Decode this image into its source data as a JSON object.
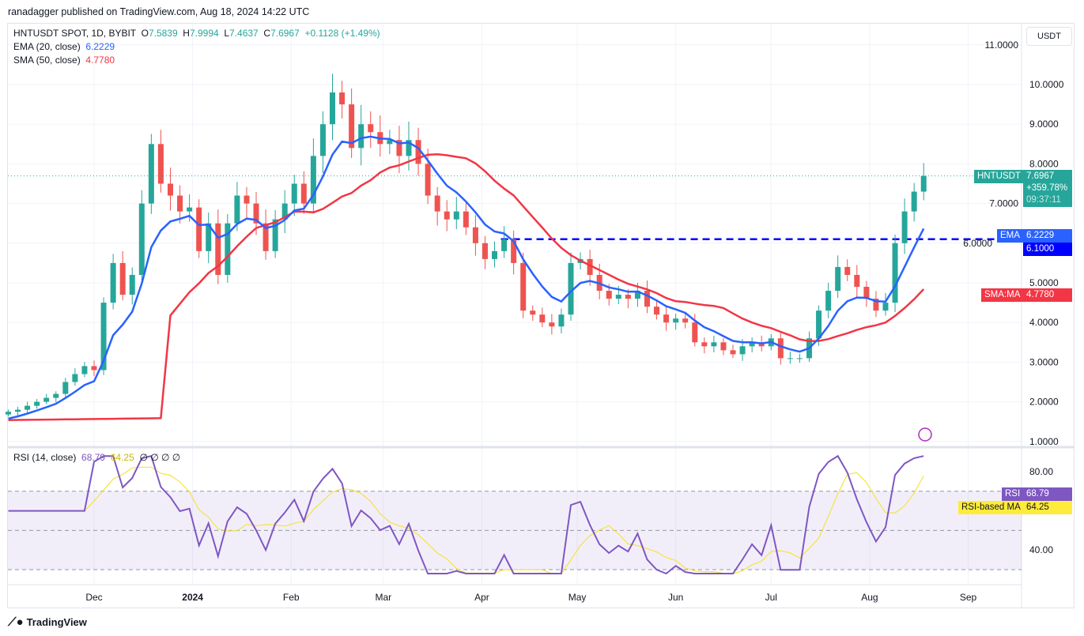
{
  "header": {
    "published": "ranadagger published on TradingView.com, Aug 18, 2024 14:22 UTC"
  },
  "legend": {
    "symbol": "HNTUSDT SPOT, 1D, BYBIT",
    "o": "7.5839",
    "h": "7.9994",
    "l": "7.4637",
    "c": "7.6967",
    "change": "+0.1128 (+1.49%)",
    "ema_label": "EMA (20, close)",
    "ema_value": "6.2229",
    "sma_label": "SMA (50, close)",
    "sma_value": "4.7780",
    "rsi_label": "RSI (14, close)",
    "rsi_value": "68.79",
    "rsi_ma_value": "64.25",
    "rsi_extra": "∅ ∅ ∅ ∅"
  },
  "currency": "USDT",
  "tags": {
    "symbol": "HNTUSDT",
    "price": "7.6967",
    "pct": "+359.78%",
    "countdown": "09:37:11",
    "ema": "EMA",
    "ema_val": "6.2229",
    "level": "6.1000",
    "sma": "SMA:MA",
    "sma_val": "4.7780",
    "rsi": "RSI",
    "rsi_val": "68.79",
    "rsi_ma": "RSI-based MA",
    "rsi_ma_val": "64.25"
  },
  "footer": {
    "brand": "TradingView"
  },
  "colors": {
    "up": "#26a69a",
    "down": "#ef5350",
    "ema": "#2962ff",
    "sma": "#f23645",
    "level": "#0000ff",
    "rsi": "#7e57c2",
    "rsi_ma": "#f5e342"
  },
  "chart_data": {
    "type": "candlestick",
    "price_ticks": [
      "11.0000",
      "10.0000",
      "9.0000",
      "8.0000",
      "7.0000",
      "6.0000",
      "5.0000",
      "4.0000",
      "3.0000",
      "2.0000",
      "1.0000"
    ],
    "price_tick_values": [
      11,
      10,
      9,
      8,
      7,
      6,
      5,
      4,
      3,
      2,
      1
    ],
    "ylim": [
      0.95,
      11.05
    ],
    "horizontal_level": 6.1,
    "x_ticks": [
      "Dec",
      "2024",
      "Feb",
      "Mar",
      "Apr",
      "May",
      "Jun",
      "Jul",
      "Aug",
      "Sep"
    ],
    "x_tick_dates": [
      "2023-12-01",
      "2024-01-01",
      "2024-02-01",
      "2024-03-01",
      "2024-04-01",
      "2024-05-01",
      "2024-06-01",
      "2024-07-01",
      "2024-08-01",
      "2024-09-01"
    ],
    "rsi_ticks": [
      "80.00",
      "40.00"
    ],
    "rsi_tick_values": [
      80,
      40
    ],
    "rsi_bands": [
      70,
      50,
      30
    ],
    "rsi_ylim": [
      20,
      95
    ],
    "start_date": "2023-11-04",
    "step_days": 3,
    "closes": [
      1.75,
      1.8,
      1.9,
      2.0,
      2.1,
      2.2,
      2.5,
      2.7,
      2.9,
      2.8,
      4.5,
      5.5,
      4.7,
      5.2,
      7.0,
      8.5,
      7.5,
      7.2,
      6.8,
      6.9,
      5.8,
      6.5,
      5.2,
      6.5,
      7.2,
      7.0,
      6.5,
      5.8,
      6.6,
      7.0,
      7.5,
      7.0,
      8.2,
      9.0,
      9.8,
      9.5,
      8.4,
      9.0,
      8.8,
      8.5,
      8.6,
      8.2,
      8.6,
      8.0,
      7.2,
      6.8,
      6.6,
      6.8,
      6.4,
      6.0,
      5.6,
      5.8,
      6.1,
      5.5,
      4.3,
      4.2,
      4.0,
      3.9,
      4.2,
      5.5,
      5.6,
      5.2,
      4.8,
      4.6,
      4.7,
      4.6,
      4.8,
      4.4,
      4.2,
      4.0,
      4.1,
      4.0,
      3.5,
      3.4,
      3.5,
      3.3,
      3.2,
      3.4,
      3.5,
      3.4,
      3.6,
      3.1,
      3.1,
      3.1,
      3.6,
      4.3,
      4.8,
      5.4,
      5.2,
      4.9,
      4.6,
      4.3,
      4.5,
      6.0,
      6.8,
      7.3,
      7.6967
    ]
  }
}
